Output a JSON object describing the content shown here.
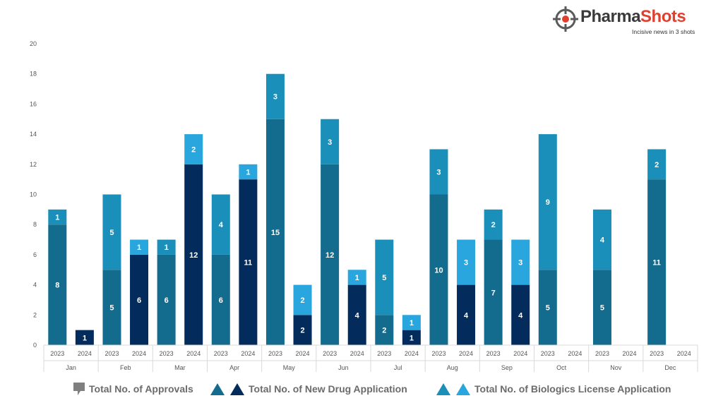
{
  "brand": {
    "name_main": "Pharma",
    "name_accent": "Shots",
    "tagline": "Incisive news in 3 shots"
  },
  "legend": {
    "approvals_label": "Total No. of Approvals",
    "nda_label": "Total No. of New Drug Application",
    "bla_label": "Total No. of Biologics License Application"
  },
  "colors": {
    "nda_2023": "#136b8e",
    "nda_2024": "#032c5c",
    "bla_2023": "#1a8fba",
    "bla_2024": "#29a6dd",
    "approvals_marker": "#7f7f7f",
    "axis_text": "#555555",
    "label_text": "#ffffff"
  },
  "chart_data": {
    "type": "bar",
    "stacked": true,
    "ylim": [
      0,
      20
    ],
    "yticks": [
      0,
      2,
      4,
      6,
      8,
      10,
      12,
      14,
      16,
      18,
      20
    ],
    "grid": false,
    "legend_position": "bottom",
    "months": [
      "Jan",
      "Feb",
      "Mar",
      "Apr",
      "May",
      "Jun",
      "Jul",
      "Aug",
      "Sep",
      "Oct",
      "Nov",
      "Dec"
    ],
    "years": [
      "2023",
      "2024"
    ],
    "series": [
      {
        "name": "Total No. of New Drug Application",
        "values_2023": [
          8,
          5,
          6,
          6,
          15,
          12,
          2,
          10,
          7,
          5,
          5,
          11
        ],
        "values_2024": [
          1,
          6,
          12,
          11,
          2,
          4,
          1,
          4,
          4,
          0,
          0,
          0
        ]
      },
      {
        "name": "Total No. of Biologics License Application",
        "values_2023": [
          1,
          5,
          1,
          4,
          3,
          3,
          5,
          3,
          2,
          9,
          4,
          2
        ],
        "values_2024": [
          0,
          1,
          2,
          1,
          2,
          1,
          1,
          3,
          3,
          0,
          0,
          0
        ]
      }
    ]
  }
}
